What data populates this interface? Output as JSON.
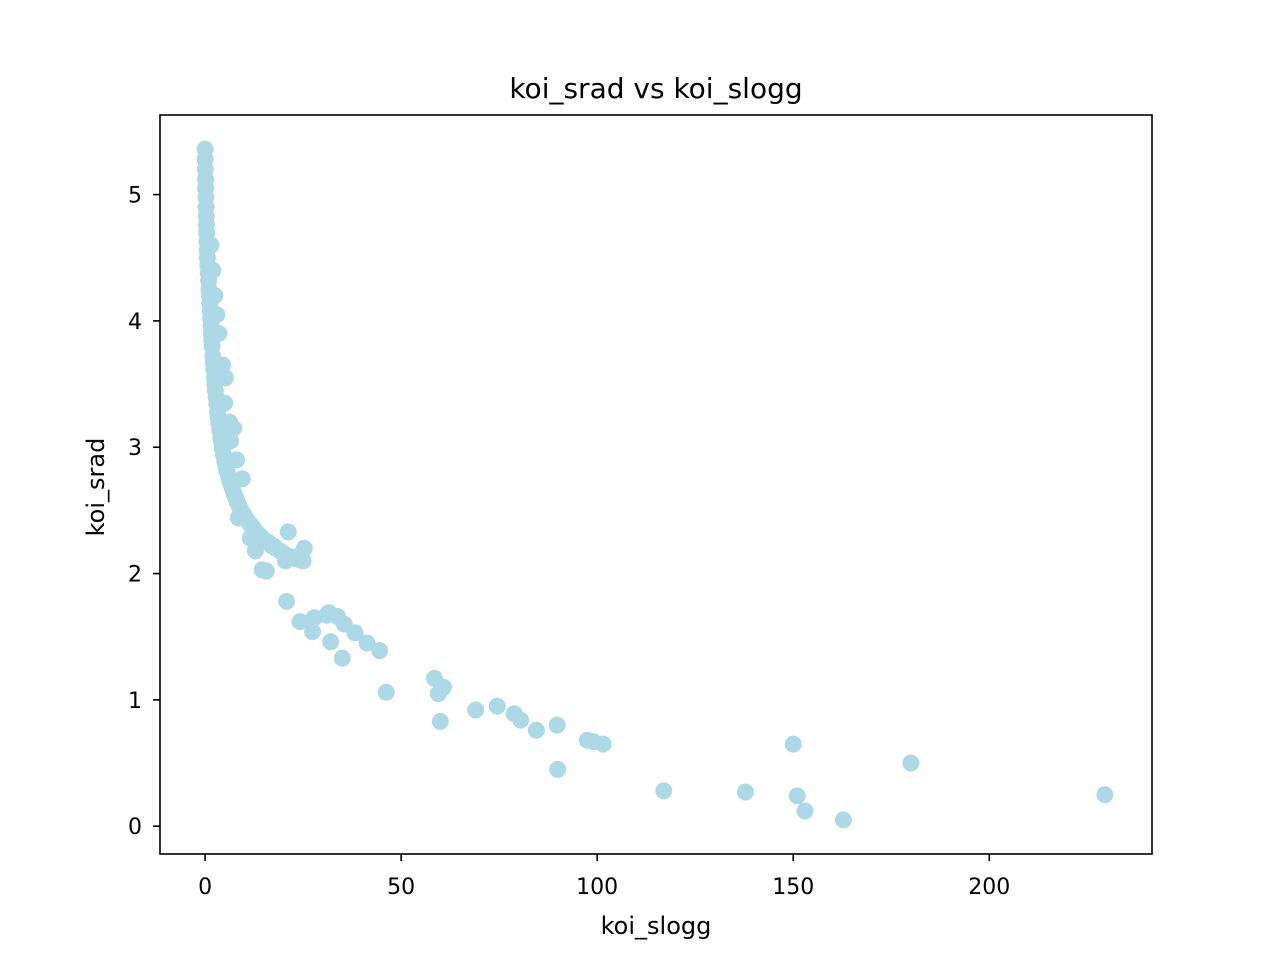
{
  "chart_data": {
    "type": "scatter",
    "title": "koi_srad vs koi_slogg",
    "xlabel": "koi_slogg",
    "ylabel": "koi_srad",
    "xlim": [
      -11.5,
      241.5
    ],
    "ylim": [
      -0.22,
      5.63
    ],
    "xticks": [
      0,
      50,
      100,
      150,
      200
    ],
    "yticks": [
      0,
      1,
      2,
      3,
      4,
      5
    ],
    "grid": false,
    "legend": null,
    "point_color": "#add8e6",
    "x": [
      0.0,
      0.0,
      0.05,
      0.1,
      0.1,
      0.2,
      0.25,
      0.3,
      0.35,
      0.4,
      0.45,
      0.5,
      0.6,
      0.7,
      0.8,
      0.9,
      1.0,
      1.1,
      1.2,
      1.3,
      1.4,
      1.5,
      1.6,
      1.7,
      1.8,
      2.0,
      2.1,
      2.2,
      2.4,
      2.5,
      2.6,
      2.8,
      3.0,
      3.2,
      3.3,
      3.5,
      3.7,
      4.0,
      4.2,
      4.4,
      4.7,
      5.0,
      5.3,
      5.6,
      6.0,
      6.3,
      6.7,
      7.0,
      7.4,
      7.8,
      8.2,
      8.6,
      9.0,
      9.5,
      10.0,
      10.5,
      11.0,
      11.5,
      12.0,
      12.5,
      13.0,
      13.5,
      14.0,
      15.0,
      16.0,
      17.0,
      18.0,
      19.0,
      20.0,
      21.0,
      22.0,
      23.0,
      24.0,
      25.0,
      8.5,
      11.5,
      12.8,
      14.6,
      15.6,
      17.4,
      20.5,
      21.2,
      24.0,
      25.3,
      2.5,
      3.0,
      4.5,
      5.2,
      6.2,
      7.3,
      1.5,
      2.0,
      3.5,
      4.0,
      5.0,
      6.5,
      8.0,
      9.5,
      20.8,
      24.2,
      27.4,
      27.8,
      31.0,
      31.6,
      32.0,
      33.8,
      35.0,
      35.5,
      38.2,
      41.3,
      44.5,
      46.2,
      58.5,
      59.5,
      60.0,
      60.8,
      69.0,
      74.5,
      78.8,
      80.5,
      84.5,
      89.8,
      89.9,
      97.5,
      99.0,
      101.5,
      117.0,
      137.8,
      150.0,
      151.0,
      153.0,
      162.8,
      180.0,
      229.5
    ],
    "y": [
      5.36,
      5.28,
      5.2,
      5.12,
      5.05,
      4.98,
      4.9,
      4.83,
      4.76,
      4.7,
      4.63,
      4.56,
      4.5,
      4.44,
      4.38,
      4.32,
      4.25,
      4.2,
      4.14,
      4.08,
      4.02,
      3.96,
      3.9,
      3.85,
      3.8,
      3.72,
      3.67,
      3.62,
      3.55,
      3.5,
      3.45,
      3.4,
      3.34,
      3.28,
      3.24,
      3.19,
      3.14,
      3.08,
      3.04,
      2.99,
      2.94,
      2.89,
      2.85,
      2.81,
      2.77,
      2.73,
      2.7,
      2.67,
      2.63,
      2.6,
      2.57,
      2.54,
      2.51,
      2.48,
      2.46,
      2.43,
      2.41,
      2.39,
      2.37,
      2.35,
      2.33,
      2.31,
      2.3,
      2.27,
      2.25,
      2.22,
      2.2,
      2.18,
      2.16,
      2.14,
      2.13,
      2.12,
      2.11,
      2.1,
      2.44,
      2.28,
      2.18,
      2.03,
      2.02,
      2.22,
      2.1,
      2.33,
      2.14,
      2.2,
      4.2,
      4.05,
      3.65,
      3.55,
      3.2,
      3.15,
      4.6,
      4.4,
      3.9,
      3.6,
      3.35,
      3.05,
      2.9,
      2.75,
      1.78,
      1.62,
      1.54,
      1.65,
      1.67,
      1.69,
      1.46,
      1.66,
      1.33,
      1.6,
      1.53,
      1.45,
      1.39,
      1.06,
      1.17,
      1.05,
      0.83,
      1.1,
      0.92,
      0.95,
      0.89,
      0.84,
      0.76,
      0.8,
      0.45,
      0.68,
      0.67,
      0.65,
      0.28,
      0.27,
      0.65,
      0.24,
      0.12,
      0.05,
      0.5,
      0.25
    ]
  }
}
